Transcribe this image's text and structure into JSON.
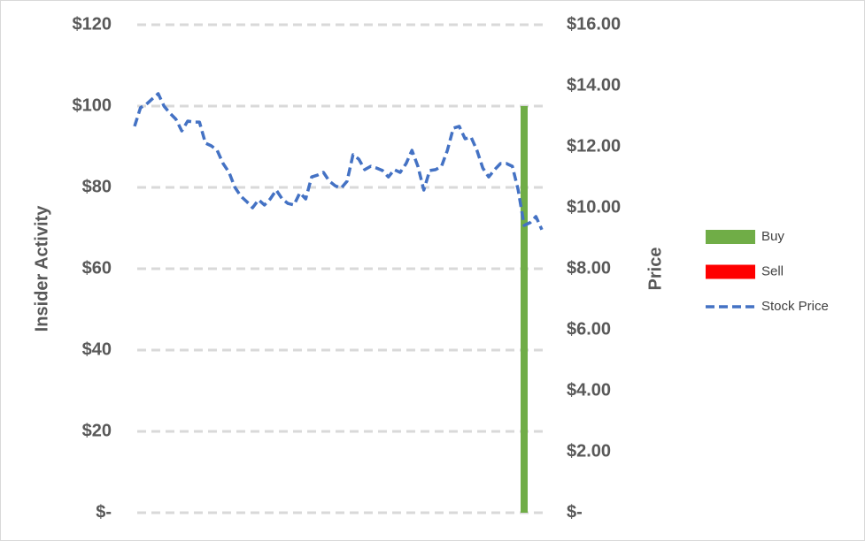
{
  "chart_data": {
    "type": "bar-line",
    "y_label": "Insider Activity",
    "y2_label": "Price",
    "ylim": [
      0,
      120
    ],
    "yticks": [
      {
        "value": 0,
        "label": "$-"
      },
      {
        "value": 20,
        "label": "$20"
      },
      {
        "value": 40,
        "label": "$40"
      },
      {
        "value": 60,
        "label": "$60"
      },
      {
        "value": 80,
        "label": "$80"
      },
      {
        "value": 100,
        "label": "$100"
      },
      {
        "value": 120,
        "label": "$120"
      }
    ],
    "y2lim": [
      0,
      16
    ],
    "y2ticks": [
      {
        "value": 0,
        "label": "$-"
      },
      {
        "value": 2,
        "label": "$2.00"
      },
      {
        "value": 4,
        "label": "$4.00"
      },
      {
        "value": 6,
        "label": "$6.00"
      },
      {
        "value": 8,
        "label": "$8.00"
      },
      {
        "value": 10,
        "label": "$10.00"
      },
      {
        "value": 12,
        "label": "$12.00"
      },
      {
        "value": 14,
        "label": "$14.00"
      },
      {
        "value": 16,
        "label": "$16.00"
      }
    ],
    "grid": true,
    "legend": "right",
    "categories": [
      null,
      null,
      null,
      null,
      null,
      null,
      null,
      null,
      null,
      null,
      null,
      null,
      null,
      null,
      null,
      null,
      null,
      null,
      null,
      null,
      null,
      null,
      null,
      null,
      null,
      null,
      null,
      null,
      null,
      null,
      null,
      null,
      null,
      null,
      null,
      null,
      null,
      null,
      null,
      null,
      null,
      null,
      null,
      null,
      null,
      null,
      null,
      null,
      null,
      null,
      null,
      null,
      null,
      null,
      null,
      null,
      null,
      null,
      null,
      null,
      null,
      null,
      null,
      null,
      null,
      null,
      null,
      null,
      null,
      null
    ],
    "series": [
      {
        "name": "Buy",
        "type": "bar",
        "color": "#70ad47",
        "values": [
          null,
          null,
          null,
          null,
          null,
          null,
          null,
          null,
          null,
          null,
          null,
          null,
          null,
          null,
          null,
          null,
          null,
          null,
          null,
          null,
          null,
          null,
          null,
          null,
          null,
          null,
          null,
          null,
          null,
          null,
          null,
          null,
          null,
          null,
          null,
          null,
          null,
          null,
          null,
          null,
          null,
          null,
          null,
          null,
          null,
          null,
          null,
          null,
          null,
          null,
          null,
          null,
          null,
          null,
          null,
          null,
          null,
          null,
          null,
          null,
          null,
          null,
          null,
          null,
          null,
          null,
          100,
          null,
          null,
          null
        ]
      },
      {
        "name": "Sell",
        "type": "bar",
        "color": "#ff0000",
        "values": [
          null,
          null,
          null,
          null,
          null,
          null,
          null,
          null,
          null,
          null,
          null,
          null,
          null,
          null,
          null,
          null,
          null,
          null,
          null,
          null,
          null,
          null,
          null,
          null,
          null,
          null,
          null,
          null,
          null,
          null,
          null,
          null,
          null,
          null,
          null,
          null,
          null,
          null,
          null,
          null,
          null,
          null,
          null,
          null,
          null,
          null,
          null,
          null,
          null,
          null,
          null,
          null,
          null,
          null,
          null,
          null,
          null,
          null,
          null,
          null,
          null,
          null,
          null,
          null,
          null,
          null,
          null,
          null,
          null,
          null
        ]
      },
      {
        "name": "Stock Price",
        "type": "line",
        "axis": "y2",
        "color": "#4472c4",
        "dashed": true,
        "values": [
          12.67,
          13.28,
          13.39,
          13.57,
          13.74,
          13.33,
          13.1,
          12.9,
          12.52,
          12.84,
          12.81,
          12.81,
          12.12,
          12.03,
          11.88,
          11.45,
          11.16,
          10.67,
          10.38,
          10.2,
          10.0,
          10.26,
          10.09,
          10.29,
          10.58,
          10.29,
          10.14,
          10.09,
          10.49,
          10.29,
          11.01,
          11.07,
          11.16,
          10.87,
          10.72,
          10.64,
          10.87,
          11.74,
          11.59,
          11.25,
          11.36,
          11.3,
          11.22,
          11.01,
          11.25,
          11.16,
          11.45,
          11.88,
          11.36,
          10.58,
          11.22,
          11.25,
          11.36,
          11.88,
          12.61,
          12.67,
          12.26,
          12.32,
          11.88,
          11.3,
          11.01,
          11.25,
          11.45,
          11.45,
          11.36,
          10.58,
          9.42,
          9.51,
          9.71,
          9.28
        ]
      }
    ]
  }
}
